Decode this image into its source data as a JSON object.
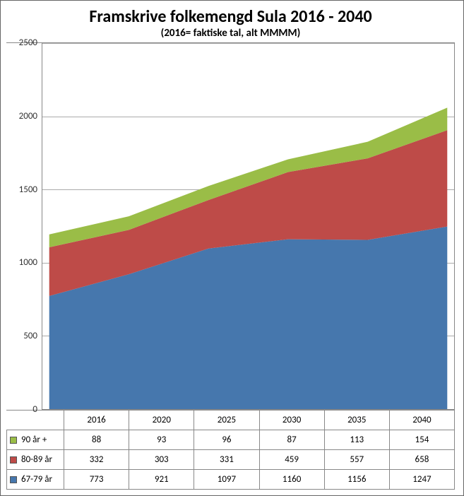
{
  "title": "Framskrive folkemengd Sula 2016 - 2040",
  "subtitle": "(2016= faktiske tal, alt MMMM)",
  "title_fontsize": 24,
  "subtitle_fontsize": 15,
  "chart": {
    "type": "stacked-area",
    "categories": [
      "2016",
      "2020",
      "2025",
      "2030",
      "2035",
      "2040"
    ],
    "ylim": [
      0,
      2500
    ],
    "ytick_step": 500,
    "yticks": [
      "0",
      "500",
      "1000",
      "1500",
      "2000",
      "2500"
    ],
    "grid_color": "#aaaaaa",
    "background_color": "#ffffff",
    "border_color": "#888888",
    "stack_order": [
      "67-79 år",
      "80-89 år",
      "90 år +"
    ],
    "series": [
      {
        "name": "90 år +",
        "color": "#9abd47",
        "values": [
          88,
          93,
          96,
          87,
          113,
          154
        ]
      },
      {
        "name": "80-89 år",
        "color": "#be4b48",
        "values": [
          332,
          303,
          331,
          459,
          557,
          658
        ]
      },
      {
        "name": "67-79 år",
        "color": "#4677ad",
        "values": [
          773,
          921,
          1097,
          1160,
          1156,
          1247
        ]
      }
    ]
  },
  "table": {
    "header_is_categories": true,
    "rows_are_series": true,
    "cell_fontsize": 13,
    "border_color": "#888888"
  }
}
